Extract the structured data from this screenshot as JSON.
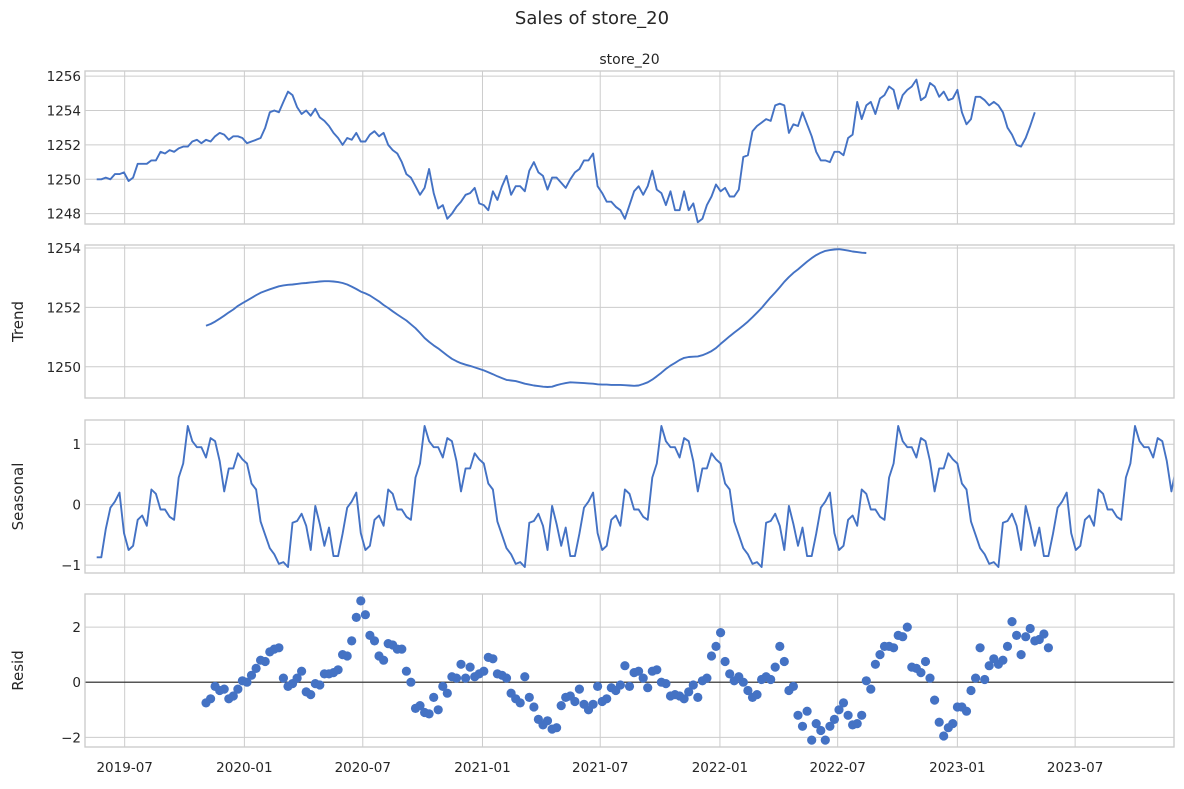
{
  "title": "Sales of store_20",
  "panel_title": "store_20",
  "colors": {
    "series": "#4472c4",
    "grid": "#cccccc",
    "zero_line": "#262626"
  },
  "chart_data": [
    {
      "type": "line",
      "name": "observed",
      "title": "store_20",
      "ylabel": "",
      "ylim": [
        1247.4,
        1256.3
      ],
      "yticks": [
        1248,
        1250,
        1252,
        1254,
        1256
      ],
      "x_start": "2019-05-19",
      "x_step_days": 7,
      "values": [
        1250.0,
        1250.0,
        1250.1,
        1250.0,
        1250.3,
        1250.3,
        1250.4,
        1249.9,
        1250.1,
        1250.9,
        1250.9,
        1250.9,
        1251.1,
        1251.1,
        1251.6,
        1251.5,
        1251.7,
        1251.6,
        1251.8,
        1251.9,
        1251.9,
        1252.2,
        1252.3,
        1252.1,
        1252.3,
        1252.2,
        1252.5,
        1252.7,
        1252.6,
        1252.3,
        1252.5,
        1252.5,
        1252.4,
        1252.1,
        1252.2,
        1252.3,
        1252.4,
        1253.0,
        1253.9,
        1254.0,
        1253.9,
        1254.5,
        1255.1,
        1254.9,
        1254.2,
        1253.8,
        1254.0,
        1253.7,
        1254.1,
        1253.6,
        1253.4,
        1253.1,
        1252.7,
        1252.4,
        1252.0,
        1252.4,
        1252.3,
        1252.7,
        1252.2,
        1252.2,
        1252.6,
        1252.8,
        1252.5,
        1252.7,
        1252.0,
        1251.7,
        1251.5,
        1251.0,
        1250.3,
        1250.1,
        1249.6,
        1249.1,
        1249.5,
        1250.6,
        1249.2,
        1248.3,
        1248.5,
        1247.7,
        1248.0,
        1248.4,
        1248.7,
        1249.1,
        1249.2,
        1249.5,
        1248.6,
        1248.5,
        1248.2,
        1249.3,
        1248.8,
        1249.6,
        1250.2,
        1249.1,
        1249.6,
        1249.6,
        1249.3,
        1250.5,
        1251.0,
        1250.4,
        1250.2,
        1249.4,
        1250.1,
        1250.1,
        1249.8,
        1249.5,
        1250.0,
        1250.4,
        1250.6,
        1251.1,
        1251.1,
        1251.5,
        1249.6,
        1249.2,
        1248.7,
        1248.7,
        1248.4,
        1248.2,
        1247.7,
        1248.5,
        1249.3,
        1249.6,
        1249.1,
        1249.6,
        1250.5,
        1249.4,
        1249.2,
        1248.5,
        1249.3,
        1248.2,
        1248.2,
        1249.3,
        1248.2,
        1248.6,
        1247.5,
        1247.7,
        1248.5,
        1249.0,
        1249.7,
        1249.3,
        1249.5,
        1249.0,
        1249.0,
        1249.4,
        1251.3,
        1251.4,
        1252.8,
        1253.1,
        1253.3,
        1253.5,
        1253.4,
        1254.3,
        1254.4,
        1254.3,
        1252.7,
        1253.2,
        1253.1,
        1253.9,
        1253.2,
        1252.5,
        1251.6,
        1251.1,
        1251.1,
        1251.0,
        1251.6,
        1251.6,
        1251.4,
        1252.4,
        1252.6,
        1254.5,
        1253.5,
        1254.3,
        1254.5,
        1253.8,
        1254.7,
        1254.9,
        1255.4,
        1255.2,
        1254.1,
        1254.9,
        1255.2,
        1255.4,
        1255.8,
        1254.6,
        1254.8,
        1255.6,
        1255.4,
        1254.8,
        1255.1,
        1254.6,
        1254.7,
        1255.2,
        1253.9,
        1253.2,
        1253.5,
        1254.8,
        1254.8,
        1254.6,
        1254.3,
        1254.5,
        1254.3,
        1253.9,
        1253.0,
        1252.6,
        1252.0,
        1251.9,
        1252.4,
        1253.1,
        1253.9
      ]
    },
    {
      "type": "line",
      "name": "trend",
      "ylabel": "Trend",
      "ylim": [
        1248.95,
        1254.1
      ],
      "yticks": [
        1250,
        1252,
        1254
      ],
      "x_start": "2019-11-03",
      "x_step_days": 7,
      "values": [
        1251.38,
        1251.44,
        1251.52,
        1251.62,
        1251.72,
        1251.83,
        1251.93,
        1252.05,
        1252.14,
        1252.23,
        1252.32,
        1252.41,
        1252.49,
        1252.55,
        1252.61,
        1252.66,
        1252.71,
        1252.74,
        1252.76,
        1252.77,
        1252.79,
        1252.81,
        1252.82,
        1252.84,
        1252.85,
        1252.87,
        1252.88,
        1252.88,
        1252.87,
        1252.85,
        1252.82,
        1252.77,
        1252.7,
        1252.62,
        1252.53,
        1252.47,
        1252.4,
        1252.3,
        1252.2,
        1252.08,
        1251.98,
        1251.87,
        1251.76,
        1251.66,
        1251.56,
        1251.43,
        1251.3,
        1251.14,
        1250.97,
        1250.84,
        1250.72,
        1250.62,
        1250.5,
        1250.38,
        1250.27,
        1250.19,
        1250.12,
        1250.07,
        1250.03,
        1249.98,
        1249.93,
        1249.88,
        1249.82,
        1249.75,
        1249.68,
        1249.62,
        1249.56,
        1249.54,
        1249.52,
        1249.48,
        1249.43,
        1249.4,
        1249.37,
        1249.35,
        1249.33,
        1249.32,
        1249.33,
        1249.38,
        1249.42,
        1249.45,
        1249.48,
        1249.47,
        1249.46,
        1249.45,
        1249.44,
        1249.43,
        1249.41,
        1249.4,
        1249.4,
        1249.39,
        1249.39,
        1249.39,
        1249.38,
        1249.37,
        1249.36,
        1249.37,
        1249.42,
        1249.48,
        1249.57,
        1249.68,
        1249.8,
        1249.93,
        1250.04,
        1250.13,
        1250.23,
        1250.3,
        1250.33,
        1250.34,
        1250.35,
        1250.39,
        1250.45,
        1250.53,
        1250.63,
        1250.77,
        1250.9,
        1251.03,
        1251.15,
        1251.27,
        1251.39,
        1251.52,
        1251.67,
        1251.82,
        1251.98,
        1252.16,
        1252.34,
        1252.5,
        1252.68,
        1252.86,
        1253.02,
        1253.16,
        1253.28,
        1253.41,
        1253.54,
        1253.66,
        1253.76,
        1253.84,
        1253.9,
        1253.93,
        1253.95,
        1253.96,
        1253.94,
        1253.91,
        1253.88,
        1253.86,
        1253.84,
        1253.83
      ]
    },
    {
      "type": "line",
      "name": "seasonal",
      "ylabel": "Seasonal",
      "ylim": [
        -1.13,
        1.4
      ],
      "yticks": [
        -1,
        0,
        1
      ],
      "x_start": "2019-05-19",
      "x_step_days": 7,
      "values": [
        -0.87,
        -0.87,
        -0.4,
        -0.05,
        0.05,
        0.2,
        -0.47,
        -0.75,
        -0.68,
        -0.25,
        -0.18,
        -0.35,
        0.25,
        0.18,
        -0.08,
        -0.08,
        -0.2,
        -0.25,
        0.45,
        0.68,
        1.3,
        1.05,
        0.95,
        0.95,
        0.78,
        1.1,
        1.05,
        0.72,
        0.22,
        0.6,
        0.6,
        0.85,
        0.75,
        0.68,
        0.35,
        0.25,
        -0.28,
        -0.5,
        -0.72,
        -0.82,
        -0.98,
        -0.95,
        -1.03,
        -0.3,
        -0.27,
        -0.15,
        -0.35,
        -0.75,
        -0.02,
        -0.32,
        -0.68,
        -0.38,
        -0.85,
        -0.85,
        -0.48,
        -0.05,
        0.05,
        0.2,
        -0.47,
        -0.75,
        -0.68,
        -0.25,
        -0.18,
        -0.35,
        0.25,
        0.18,
        -0.08,
        -0.08,
        -0.2,
        -0.25,
        0.45,
        0.68,
        1.3,
        1.05,
        0.95,
        0.95,
        0.78,
        1.1,
        1.05,
        0.72,
        0.22,
        0.6,
        0.6,
        0.85,
        0.75,
        0.68,
        0.35,
        0.25,
        -0.28,
        -0.5,
        -0.72,
        -0.82,
        -0.98,
        -0.95,
        -1.03,
        -0.3,
        -0.27,
        -0.15,
        -0.35,
        -0.75,
        -0.02,
        -0.32,
        -0.68,
        -0.38,
        -0.85,
        -0.85,
        -0.48,
        -0.05,
        0.05,
        0.2,
        -0.47,
        -0.75,
        -0.68,
        -0.25,
        -0.18,
        -0.35,
        0.25,
        0.18,
        -0.08,
        -0.08,
        -0.2,
        -0.25,
        0.45,
        0.68,
        1.3,
        1.05,
        0.95,
        0.95,
        0.78,
        1.1,
        1.05,
        0.72,
        0.22,
        0.6,
        0.6,
        0.85,
        0.75,
        0.68,
        0.35,
        0.25,
        -0.28,
        -0.5,
        -0.72,
        -0.82,
        -0.98,
        -0.95,
        -1.03,
        -0.3,
        -0.27,
        -0.15,
        -0.35,
        -0.75,
        -0.02,
        -0.32,
        -0.68,
        -0.38,
        -0.85,
        -0.85,
        -0.48,
        -0.05,
        0.05,
        0.2,
        -0.47,
        -0.75,
        -0.68,
        -0.25,
        -0.18,
        -0.35,
        0.25,
        0.18,
        -0.08,
        -0.08,
        -0.2,
        -0.25,
        0.45,
        0.68,
        1.3,
        1.05,
        0.95,
        0.95,
        0.78,
        1.1,
        1.05,
        0.72,
        0.22,
        0.6,
        0.6,
        0.85,
        0.75,
        0.68,
        0.35,
        0.25,
        -0.28,
        -0.5,
        -0.72,
        -0.82,
        -0.98,
        -0.95,
        -1.03,
        -0.3,
        -0.27,
        -0.15,
        -0.35,
        -0.75,
        -0.02,
        -0.32,
        -0.68,
        -0.38,
        -0.85,
        -0.85,
        -0.48,
        -0.05,
        0.05,
        0.2,
        -0.47,
        -0.75,
        -0.68,
        -0.25,
        -0.18,
        -0.35,
        0.25,
        0.18,
        -0.08,
        -0.08,
        -0.2,
        -0.25,
        0.45,
        0.68,
        1.3,
        1.05,
        0.95,
        0.95,
        0.78,
        1.1,
        1.05,
        0.72,
        0.22,
        0.6,
        0.6,
        0.85,
        0.75
      ]
    },
    {
      "type": "scatter",
      "name": "resid",
      "ylabel": "Resid",
      "ylim": [
        -2.35,
        3.2
      ],
      "yticks": [
        -2,
        0,
        2
      ],
      "zero_line": true,
      "x_start": "2019-11-03",
      "x_step_days": 7,
      "values": [
        -0.75,
        -0.6,
        -0.15,
        -0.3,
        -0.25,
        -0.6,
        -0.5,
        -0.25,
        0.05,
        0.0,
        0.25,
        0.5,
        0.8,
        0.75,
        1.1,
        1.2,
        1.25,
        0.15,
        -0.15,
        -0.05,
        0.15,
        0.4,
        -0.35,
        -0.45,
        -0.05,
        -0.1,
        0.3,
        0.3,
        0.35,
        0.45,
        1.0,
        0.95,
        1.5,
        2.35,
        2.95,
        2.45,
        1.7,
        1.5,
        0.95,
        0.8,
        1.4,
        1.35,
        1.2,
        1.2,
        0.4,
        0.0,
        -0.95,
        -0.85,
        -1.1,
        -1.15,
        -0.55,
        -1.0,
        -0.15,
        -0.4,
        0.2,
        0.15,
        0.65,
        0.15,
        0.55,
        0.2,
        0.3,
        0.4,
        0.9,
        0.85,
        0.3,
        0.25,
        0.15,
        -0.4,
        -0.6,
        -0.75,
        0.2,
        -0.55,
        -0.9,
        -1.35,
        -1.55,
        -1.4,
        -1.7,
        -1.65,
        -0.85,
        -0.55,
        -0.5,
        -0.7,
        -0.25,
        -0.8,
        -1.0,
        -0.8,
        -0.15,
        -0.7,
        -0.6,
        -0.2,
        -0.3,
        -0.1,
        0.6,
        -0.15,
        0.35,
        0.4,
        0.15,
        -0.2,
        0.4,
        0.45,
        0.0,
        -0.05,
        -0.5,
        -0.45,
        -0.5,
        -0.6,
        -0.35,
        -0.1,
        -0.55,
        0.05,
        0.15,
        0.95,
        1.3,
        1.8,
        0.75,
        0.3,
        0.05,
        0.2,
        0.0,
        -0.3,
        -0.55,
        -0.45,
        0.1,
        0.2,
        0.1,
        0.55,
        1.3,
        0.75,
        -0.3,
        -0.15,
        -1.2,
        -1.6,
        -1.05,
        -2.1,
        -1.5,
        -1.75,
        -2.1,
        -1.6,
        -1.35,
        -1.0,
        -0.75,
        -1.2,
        -1.55,
        -1.5,
        -1.2,
        0.05,
        -0.25,
        0.65,
        1.0,
        1.3,
        1.3,
        1.25,
        1.7,
        1.65,
        2.0,
        0.55,
        0.5,
        0.35,
        0.75,
        0.15,
        -0.65,
        -1.45,
        -1.95,
        -1.65,
        -1.5,
        -0.9,
        -0.9,
        -1.05,
        -0.3,
        0.15,
        1.25,
        0.1,
        0.6,
        0.85,
        0.65,
        0.8,
        1.3,
        2.2,
        1.7,
        1.0,
        1.65,
        1.95,
        1.5,
        1.55,
        1.75,
        1.25
      ]
    }
  ],
  "x_axis": {
    "range": [
      "2019-05-01",
      "2023-11-30"
    ],
    "ticks": [
      {
        "date": "2019-07-01",
        "label": "2019-07"
      },
      {
        "date": "2020-01-01",
        "label": "2020-01"
      },
      {
        "date": "2020-07-01",
        "label": "2020-07"
      },
      {
        "date": "2021-01-01",
        "label": "2021-01"
      },
      {
        "date": "2021-07-01",
        "label": "2021-07"
      },
      {
        "date": "2022-01-01",
        "label": "2022-01"
      },
      {
        "date": "2022-07-01",
        "label": "2022-07"
      },
      {
        "date": "2023-01-01",
        "label": "2023-01"
      },
      {
        "date": "2023-07-01",
        "label": "2023-07"
      }
    ]
  }
}
